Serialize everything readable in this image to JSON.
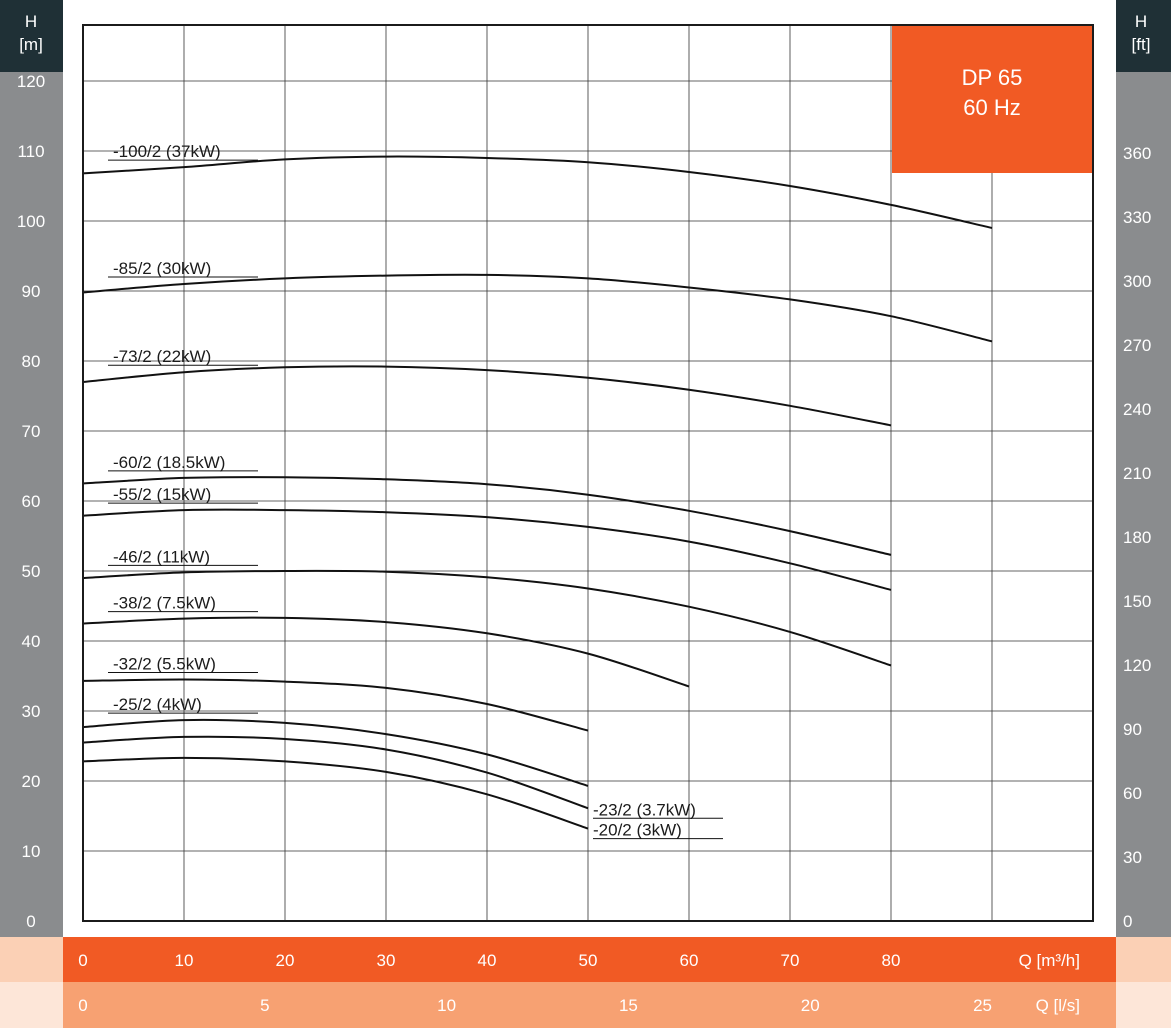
{
  "chart_data": {
    "type": "line",
    "title_lines": [
      "DP 65",
      "60 Hz"
    ],
    "left_axis": {
      "unit_symbol": "H",
      "unit": "[m]",
      "ticks": [
        0,
        10,
        20,
        30,
        40,
        50,
        60,
        70,
        80,
        90,
        100,
        110,
        120
      ],
      "range": [
        0,
        128
      ]
    },
    "right_axis": {
      "unit_symbol": "H",
      "unit": "[ft]",
      "ticks": [
        0,
        30,
        60,
        90,
        120,
        150,
        180,
        210,
        240,
        270,
        300,
        330,
        360
      ]
    },
    "x_axis": {
      "label": "Q [m³/h]",
      "ticks": [
        0,
        10,
        20,
        30,
        40,
        50,
        60,
        70,
        80
      ],
      "range": [
        0,
        100
      ]
    },
    "x_axis_secondary": {
      "label": "Q [l/s]",
      "ticks": [
        0,
        5,
        10,
        15,
        20,
        25
      ]
    },
    "grid": true,
    "series": [
      {
        "name": "-100/2 (37kW)",
        "x": [
          0,
          10,
          20,
          30,
          40,
          50,
          60,
          70,
          80,
          90
        ],
        "y": [
          106.8,
          107.7,
          108.8,
          109.2,
          109.0,
          108.4,
          107.0,
          105.0,
          102.3,
          99.0
        ]
      },
      {
        "name": "-85/2 (30kW)",
        "x": [
          0,
          10,
          20,
          30,
          40,
          50,
          60,
          70,
          80,
          90
        ],
        "y": [
          89.8,
          91.0,
          91.8,
          92.2,
          92.3,
          91.8,
          90.5,
          88.8,
          86.4,
          82.8
        ]
      },
      {
        "name": "-73/2 (22kW)",
        "x": [
          0,
          10,
          20,
          30,
          40,
          50,
          60,
          70,
          80
        ],
        "y": [
          77.0,
          78.4,
          79.1,
          79.2,
          78.7,
          77.6,
          75.9,
          73.6,
          70.8
        ]
      },
      {
        "name": "-60/2 (18.5kW)",
        "x": [
          0,
          10,
          20,
          30,
          40,
          50,
          60,
          70,
          80
        ],
        "y": [
          62.5,
          63.3,
          63.4,
          63.1,
          62.4,
          60.9,
          58.6,
          55.7,
          52.3
        ]
      },
      {
        "name": "-55/2 (15kW)",
        "x": [
          0,
          10,
          20,
          30,
          40,
          50,
          60,
          70,
          80
        ],
        "y": [
          57.9,
          58.7,
          58.7,
          58.4,
          57.7,
          56.3,
          54.2,
          51.1,
          47.3
        ]
      },
      {
        "name": "-46/2 (11kW)",
        "x": [
          0,
          10,
          20,
          30,
          40,
          50,
          60,
          70,
          80
        ],
        "y": [
          49.0,
          49.8,
          50.0,
          49.9,
          49.1,
          47.5,
          44.9,
          41.3,
          36.5
        ]
      },
      {
        "name": "-38/2 (7.5kW)",
        "x": [
          0,
          10,
          20,
          30,
          40,
          50,
          60
        ],
        "y": [
          42.5,
          43.2,
          43.3,
          42.7,
          41.1,
          38.2,
          33.5
        ]
      },
      {
        "name": "-32/2 (5.5kW)",
        "x": [
          0,
          10,
          20,
          30,
          40,
          50
        ],
        "y": [
          34.3,
          34.5,
          34.2,
          33.3,
          31.0,
          27.2
        ]
      },
      {
        "name": "-25/2 (4kW)",
        "x": [
          0,
          10,
          20,
          30,
          40,
          50
        ],
        "y": [
          27.7,
          28.7,
          28.3,
          26.7,
          23.8,
          19.3
        ]
      },
      {
        "name": "-23/2 (3.7kW)",
        "x": [
          0,
          10,
          20,
          30,
          40,
          50
        ],
        "y": [
          25.5,
          26.3,
          26.0,
          24.5,
          21.2,
          16.1
        ]
      },
      {
        "name": "-20/2 (3kW)",
        "x": [
          0,
          10,
          20,
          30,
          40,
          50
        ],
        "y": [
          22.8,
          23.3,
          22.8,
          21.3,
          18.1,
          13.2
        ]
      }
    ]
  },
  "colors": {
    "accent": "#f15a24",
    "secondary_band": "#f7a172",
    "pale_band": "#fbd0b5",
    "side_bar": "#8a8c8e",
    "dark_header": "#1f3036"
  }
}
